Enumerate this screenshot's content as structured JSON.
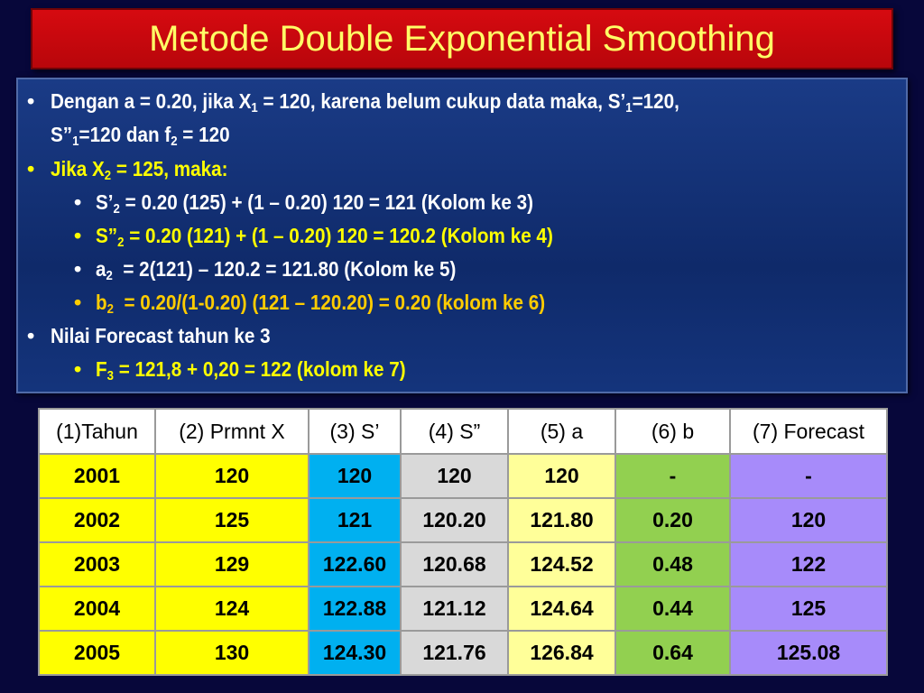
{
  "title": "Metode Double Exponential Smoothing",
  "colors": {
    "background": "#07073a",
    "title_bar": "#d60a10",
    "title_text": "#ffff66",
    "content_box": "#14347c"
  },
  "bullets": {
    "b1": {
      "part1": "Dengan a = 0.20, jika X",
      "sub1": "1",
      "part2": " = 120, karena belum cukup data maka, S’",
      "sub2": "1",
      "part3": "=120,",
      "line2a": "S”",
      "sub3": "1",
      "line2b": "=120 dan f",
      "sub4": "2",
      "line2c": " = 120"
    },
    "b2": {
      "part1": "Jika X",
      "sub1": "2",
      "part2": " = 125, maka:"
    },
    "b3": {
      "part1": "S’",
      "sub1": "2",
      "part2": " = 0.20 (125) + (1 – 0.20) 120 = 121 (Kolom ke 3)"
    },
    "b4": {
      "part1": "S”",
      "sub1": "2",
      "part2": " = 0.20 (121) + (1 – 0.20) 120 = 120.2 (Kolom ke 4)"
    },
    "b5": {
      "part1": "a",
      "sub1": "2",
      "part2": "  = 2(121) – 120.2 = 121.80 (Kolom ke 5)"
    },
    "b6": {
      "part1": "b",
      "sub1": "2",
      "part2": "  = 0.20/(1-0.20) (121 – 120.20) = 0.20 (kolom ke 6)"
    },
    "b7": {
      "part1": "Nilai Forecast tahun ke 3"
    },
    "b8": {
      "part1": "F",
      "sub1": "3",
      "part2": " = 121,8 + 0,20 = 122 (kolom ke 7)"
    }
  },
  "table": {
    "headers": [
      "(1)Tahun",
      "(2) Prmnt X",
      "(3) S’",
      "(4) S”",
      "(5) a",
      "(6) b",
      "(7) Forecast"
    ],
    "rows": [
      [
        "2001",
        "120",
        "120",
        "120",
        "120",
        "-",
        "-"
      ],
      [
        "2002",
        "125",
        "121",
        "120.20",
        "121.80",
        "0.20",
        "120"
      ],
      [
        "2003",
        "129",
        "122.60",
        "120.68",
        "124.52",
        "0.48",
        "122"
      ],
      [
        "2004",
        "124",
        "122.88",
        "121.12",
        "124.64",
        "0.44",
        "125"
      ],
      [
        "2005",
        "130",
        "124.30",
        "121.76",
        "126.84",
        "0.64",
        "125.08"
      ]
    ]
  }
}
